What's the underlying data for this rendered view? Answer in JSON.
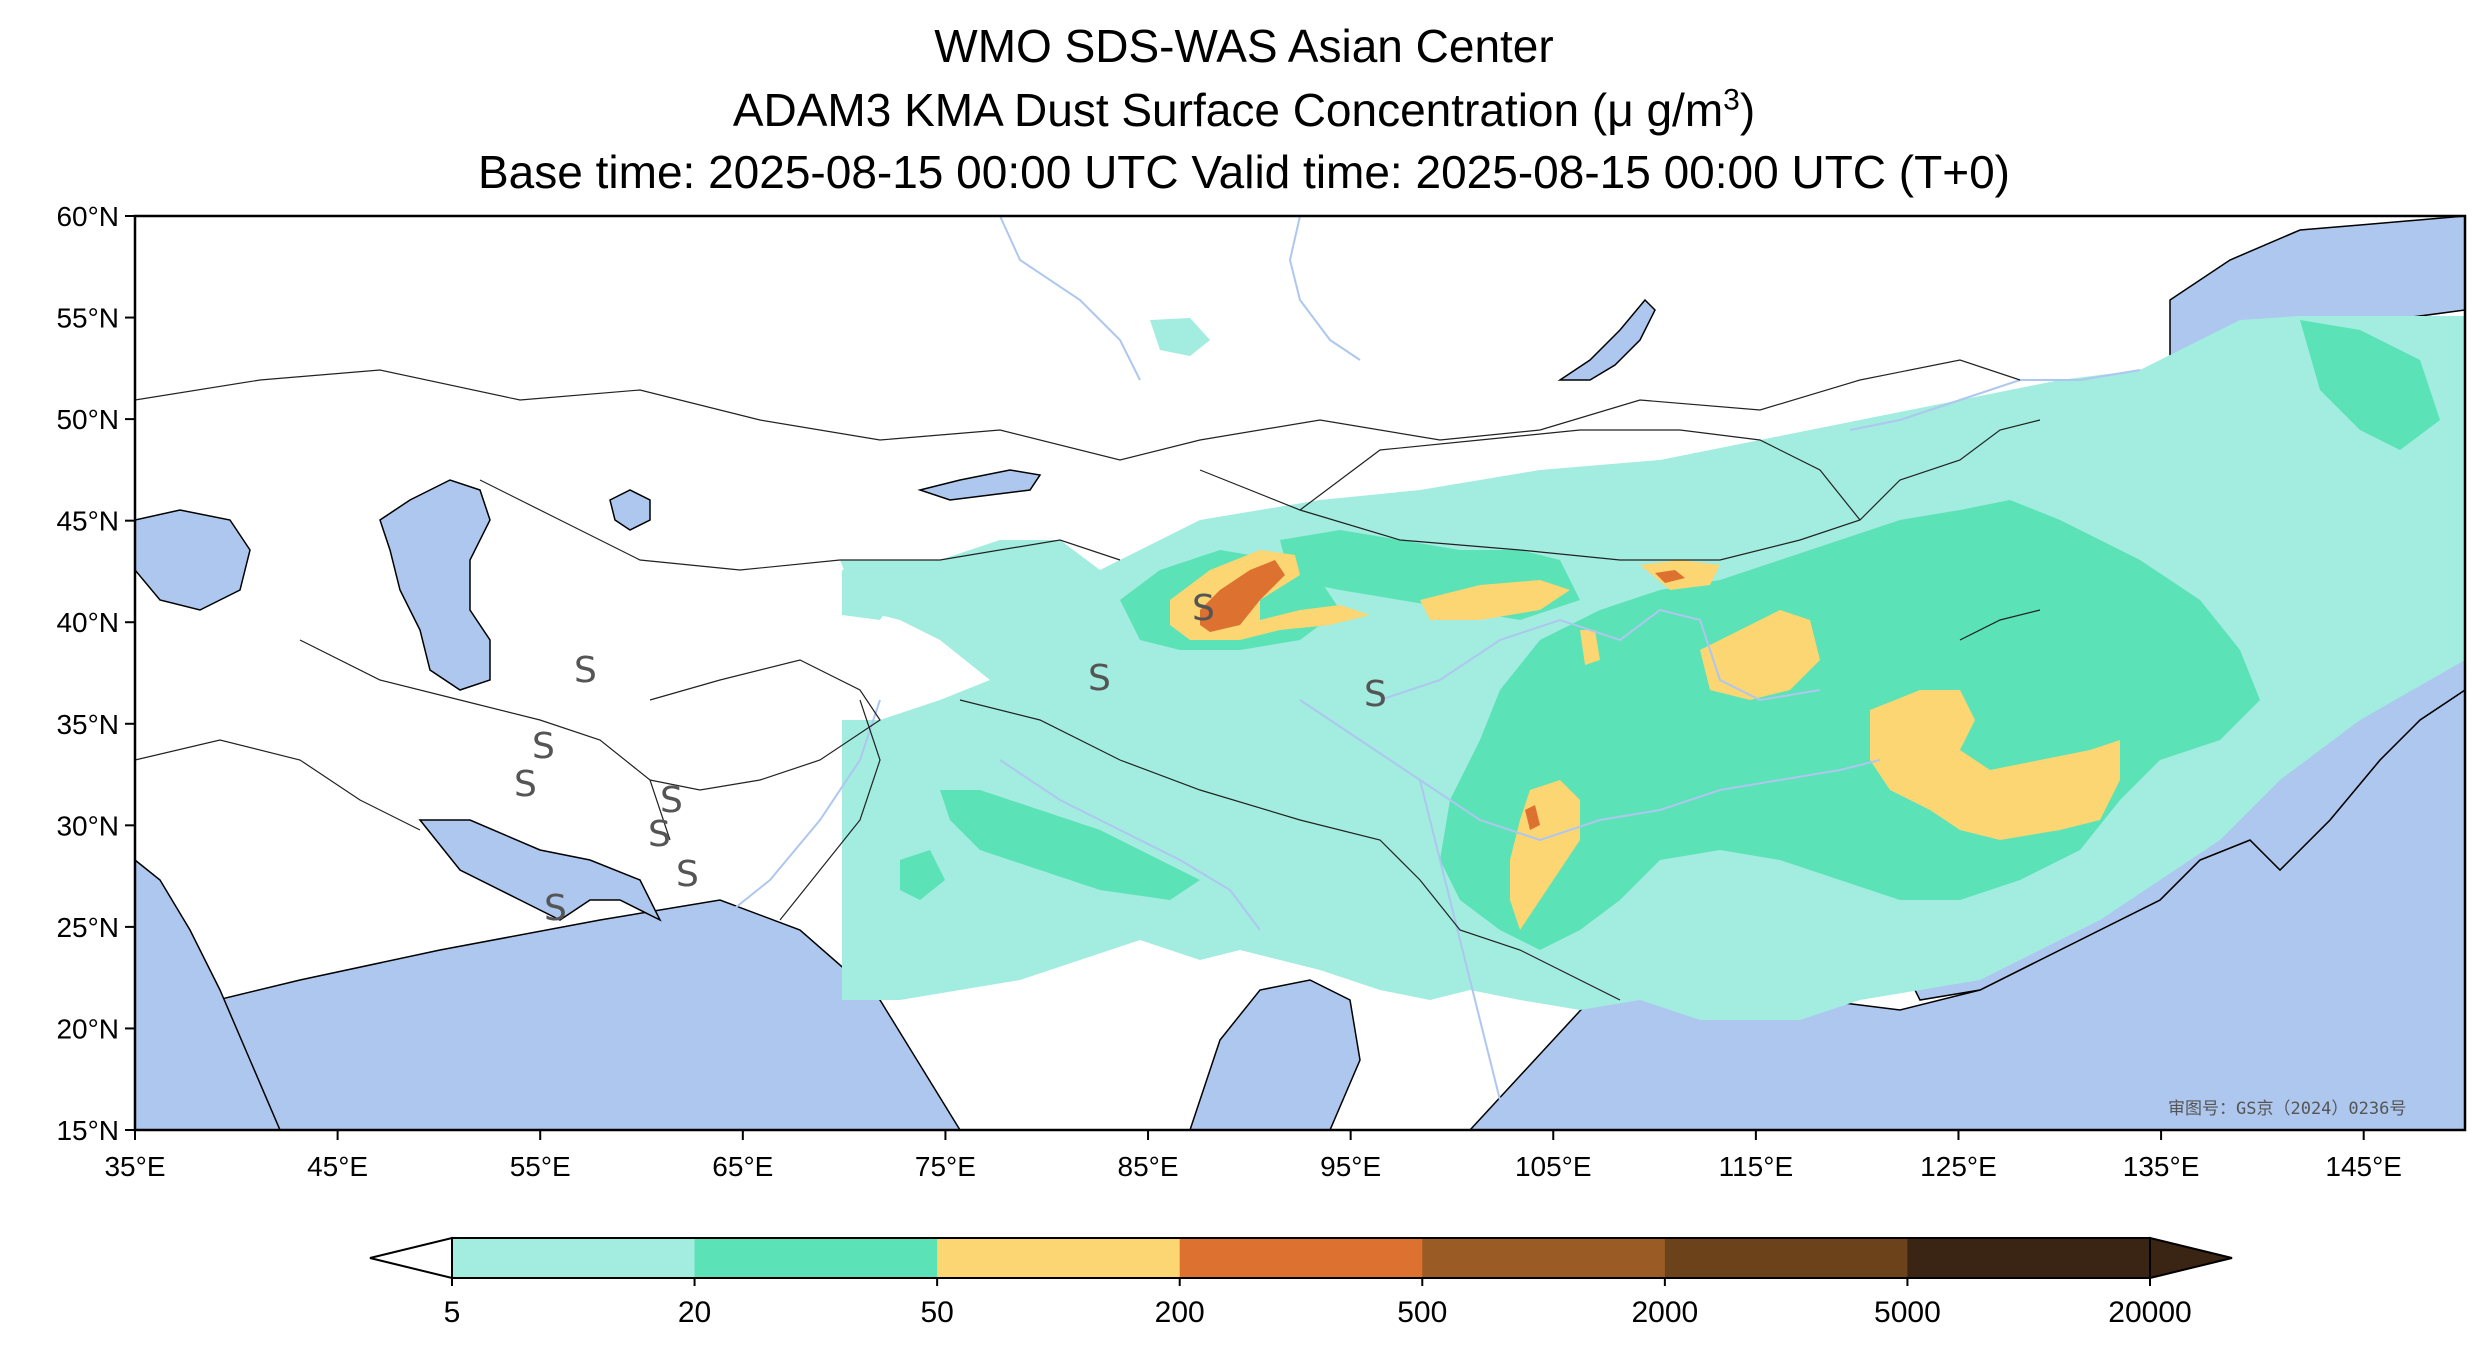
{
  "title": {
    "line1": "WMO SDS-WAS Asian Center",
    "line2_prefix": "ADAM3 KMA Dust Surface Concentration (",
    "line2_unit": "μ g/m",
    "line2_exp": "3",
    "line2_suffix": ")",
    "line3": "Base time: 2025-08-15 00:00 UTC Valid time: 2025-08-15 00:00 UTC (T+0)"
  },
  "map": {
    "lon_ticks": [
      "35°E",
      "45°E",
      "55°E",
      "65°E",
      "75°E",
      "85°E",
      "95°E",
      "105°E",
      "115°E",
      "125°E",
      "135°E",
      "145°E"
    ],
    "lat_ticks": [
      "60°N",
      "55°N",
      "50°N",
      "45°N",
      "40°N",
      "35°N",
      "30°N",
      "25°N",
      "20°N",
      "15°N"
    ],
    "extent": {
      "lon": [
        35,
        150
      ],
      "lat": [
        15,
        60
      ]
    },
    "stamp": "审图号：GS京（2024）0236号",
    "colors": {
      "ocean": "#aec7ee",
      "land": "#ffffff",
      "river": "#aec7ee"
    }
  },
  "colorbar": {
    "levels": [
      "5",
      "20",
      "50",
      "200",
      "500",
      "2000",
      "5000",
      "20000"
    ],
    "colors": [
      "#a2ece0",
      "#5be2b6",
      "#fbd673",
      "#dc7130",
      "#9b5b24",
      "#6b4219",
      "#3a2414"
    ],
    "extend": "both"
  }
}
